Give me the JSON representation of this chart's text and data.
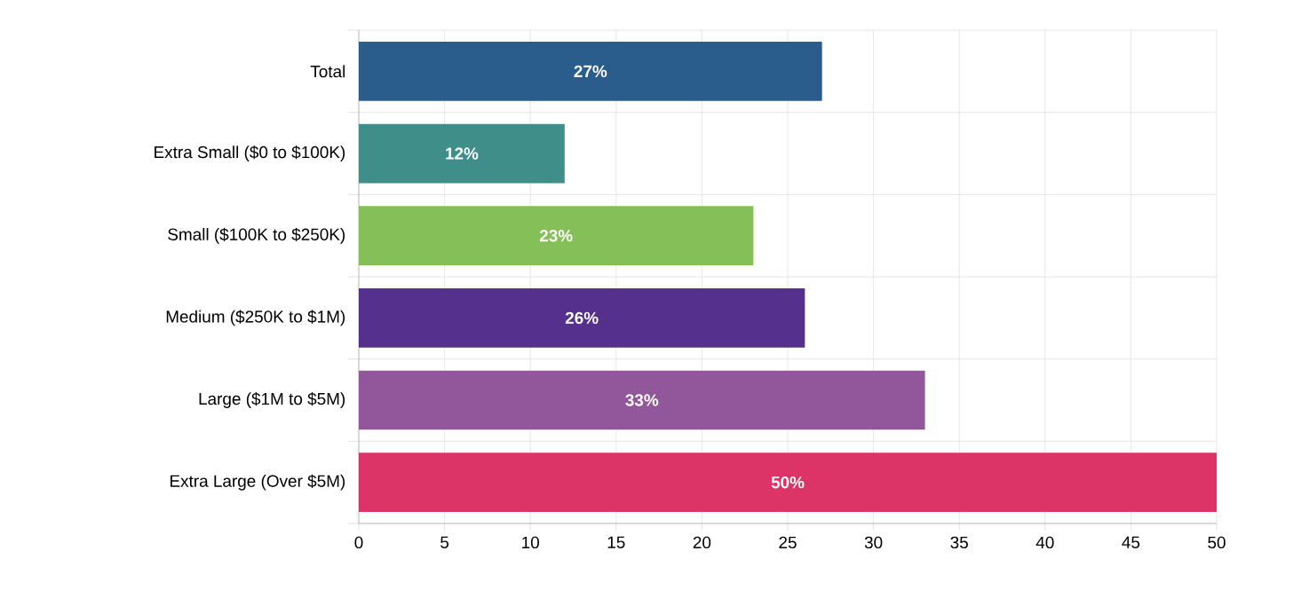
{
  "chart_data": {
    "type": "bar",
    "orientation": "horizontal",
    "categories": [
      "Total",
      "Extra Small ($0 to $100K)",
      "Small ($100K to $250K)",
      "Medium ($250K to $1M)",
      "Large ($1M to $5M)",
      "Extra Large (Over $5M)"
    ],
    "values": [
      27,
      12,
      23,
      26,
      33,
      50
    ],
    "colors": [
      "#2a5d8c",
      "#3f8e89",
      "#84bf58",
      "#55308c",
      "#92569a",
      "#dc3466"
    ],
    "value_labels": [
      "27%",
      "12%",
      "23%",
      "26%",
      "33%",
      "50%"
    ],
    "xlim": [
      0,
      50
    ],
    "xticks": [
      0,
      5,
      10,
      15,
      20,
      25,
      30,
      35,
      40,
      45,
      50
    ],
    "grid": true
  }
}
